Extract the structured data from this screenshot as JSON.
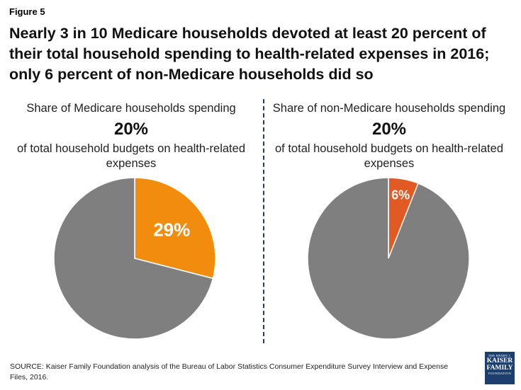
{
  "figure_label": "Figure 5",
  "headline": "Nearly 3 in 10 Medicare households devoted at least 20 percent of their total household spending to health-related expenses in 2016; only 6 percent of non-Medicare households did so",
  "chart_data": [
    {
      "type": "pie",
      "title_pre": "Share of Medicare households spending",
      "title_pct": "20%",
      "title_post": "of total household budgets on health-related expenses",
      "slices": [
        {
          "value": 29,
          "label": "29%",
          "color": "#f28c0f"
        },
        {
          "value": 71,
          "label": "",
          "color": "#7f7f7f"
        }
      ]
    },
    {
      "type": "pie",
      "title_pre": "Share of non-Medicare households spending",
      "title_pct": "20%",
      "title_post": "of total household budgets on health-related expenses",
      "slices": [
        {
          "value": 6,
          "label": "6%",
          "color": "#e05a24"
        },
        {
          "value": 94,
          "label": "",
          "color": "#7f7f7f"
        }
      ]
    }
  ],
  "source": "SOURCE: Kaiser Family Foundation  analysis of the Bureau of Labor Statistics Consumer Expenditure Survey Interview and Expense Files, 2016.",
  "logo": {
    "line1": "THE HENRY J.",
    "line2a": "KAISER",
    "line2b": "FAMILY",
    "line3": "FOUNDATION"
  }
}
